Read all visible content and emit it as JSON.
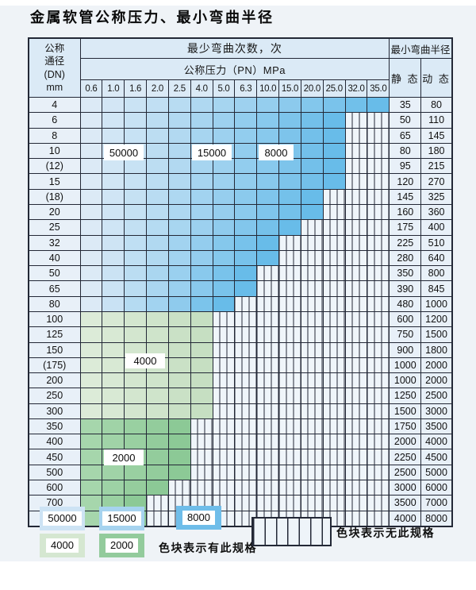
{
  "title": "金属软管公称压力、最小弯曲半径",
  "colors": {
    "blue_light": "#dceaf6",
    "blue_dark": "#68bce9",
    "green_light_a": "#dcebd8",
    "green_light_b": "#c6dfc2",
    "green_dark_a": "#a6d6ac",
    "green_dark_b": "#8cc996",
    "grid": "#232836",
    "header_bg": "#dbeaf6",
    "hatch_bg": "#eff5fa"
  },
  "table": {
    "header": {
      "dn_label": "公称\n通径\n(DN)\nmm",
      "bend_cycles_label": "最少弯曲次数，次",
      "pressure_label": "公称压力（PN）MPa",
      "radius_label": "最小弯曲半径",
      "static_label": "静 态",
      "dynamic_label": "动 态",
      "pressure_columns": [
        "0.6",
        "1.0",
        "1.6",
        "2.0",
        "2.5",
        "4.0",
        "5.0",
        "6.3",
        "10.0",
        "15.0",
        "20.0",
        "25.0",
        "32.0",
        "35.0"
      ]
    },
    "rows": [
      {
        "dn": "4",
        "colored_through": "35.0",
        "zone": "blue",
        "static": "35",
        "dynamic": "80"
      },
      {
        "dn": "6",
        "colored_through": "25.0",
        "zone": "blue",
        "static": "50",
        "dynamic": "110"
      },
      {
        "dn": "8",
        "colored_through": "25.0",
        "zone": "blue",
        "static": "65",
        "dynamic": "145"
      },
      {
        "dn": "10",
        "colored_through": "25.0",
        "zone": "blue",
        "static": "80",
        "dynamic": "180"
      },
      {
        "dn": "(12)",
        "colored_through": "25.0",
        "zone": "blue",
        "static": "95",
        "dynamic": "215"
      },
      {
        "dn": "15",
        "colored_through": "25.0",
        "zone": "blue",
        "static": "120",
        "dynamic": "270"
      },
      {
        "dn": "(18)",
        "colored_through": "20.0",
        "zone": "blue",
        "static": "145",
        "dynamic": "325"
      },
      {
        "dn": "20",
        "colored_through": "20.0",
        "zone": "blue",
        "static": "160",
        "dynamic": "360"
      },
      {
        "dn": "25",
        "colored_through": "15.0",
        "zone": "blue",
        "static": "175",
        "dynamic": "400"
      },
      {
        "dn": "32",
        "colored_through": "10.0",
        "zone": "blue",
        "static": "225",
        "dynamic": "510"
      },
      {
        "dn": "40",
        "colored_through": "10.0",
        "zone": "blue",
        "static": "280",
        "dynamic": "640"
      },
      {
        "dn": "50",
        "colored_through": "6.3",
        "zone": "blue",
        "static": "350",
        "dynamic": "800"
      },
      {
        "dn": "65",
        "colored_through": "6.3",
        "zone": "blue",
        "static": "390",
        "dynamic": "845"
      },
      {
        "dn": "80",
        "colored_through": "5.0",
        "zone": "blue",
        "static": "480",
        "dynamic": "1000"
      },
      {
        "dn": "100",
        "colored_through": "4.0",
        "zone": "green_light",
        "static": "600",
        "dynamic": "1200"
      },
      {
        "dn": "125",
        "colored_through": "4.0",
        "zone": "green_light",
        "static": "750",
        "dynamic": "1500"
      },
      {
        "dn": "150",
        "colored_through": "4.0",
        "zone": "green_light",
        "static": "900",
        "dynamic": "1800"
      },
      {
        "dn": "(175)",
        "colored_through": "4.0",
        "zone": "green_light",
        "static": "1000",
        "dynamic": "2000"
      },
      {
        "dn": "200",
        "colored_through": "4.0",
        "zone": "green_light",
        "static": "1000",
        "dynamic": "2000"
      },
      {
        "dn": "250",
        "colored_through": "4.0",
        "zone": "green_light",
        "static": "1250",
        "dynamic": "2500"
      },
      {
        "dn": "300",
        "colored_through": "4.0",
        "zone": "green_light",
        "static": "1500",
        "dynamic": "3000"
      },
      {
        "dn": "350",
        "colored_through": "2.5",
        "zone": "green_dark",
        "static": "1750",
        "dynamic": "3500"
      },
      {
        "dn": "400",
        "colored_through": "2.5",
        "zone": "green_dark",
        "static": "2000",
        "dynamic": "4000"
      },
      {
        "dn": "450",
        "colored_through": "2.5",
        "zone": "green_dark",
        "static": "2250",
        "dynamic": "4500"
      },
      {
        "dn": "500",
        "colored_through": "2.5",
        "zone": "green_dark",
        "static": "2500",
        "dynamic": "5000"
      },
      {
        "dn": "600",
        "colored_through": "2.0",
        "zone": "green_dark",
        "static": "3000",
        "dynamic": "6000"
      },
      {
        "dn": "700",
        "colored_through": "1.6",
        "zone": "green_dark",
        "static": "3500",
        "dynamic": "7000"
      },
      {
        "dn": "800",
        "colored_through": "1.6",
        "zone": "green_dark",
        "static": "4000",
        "dynamic": "8000"
      }
    ]
  },
  "overlay_labels": [
    {
      "text": "50000"
    },
    {
      "text": "15000"
    },
    {
      "text": "8000"
    },
    {
      "text": "4000"
    },
    {
      "text": "2000"
    }
  ],
  "legend": {
    "swatches": [
      {
        "label": "50000",
        "color": "#cde3f4"
      },
      {
        "label": "15000",
        "color": "#a6d3ef"
      },
      {
        "label": "8000",
        "color": "#6fbde9"
      },
      {
        "label": "4000",
        "color": "#d5e7d1"
      },
      {
        "label": "2000",
        "color": "#93cb9c"
      }
    ],
    "have_spec_text": "色块表示有此规格",
    "no_spec_text": "色块表示无此规格"
  }
}
